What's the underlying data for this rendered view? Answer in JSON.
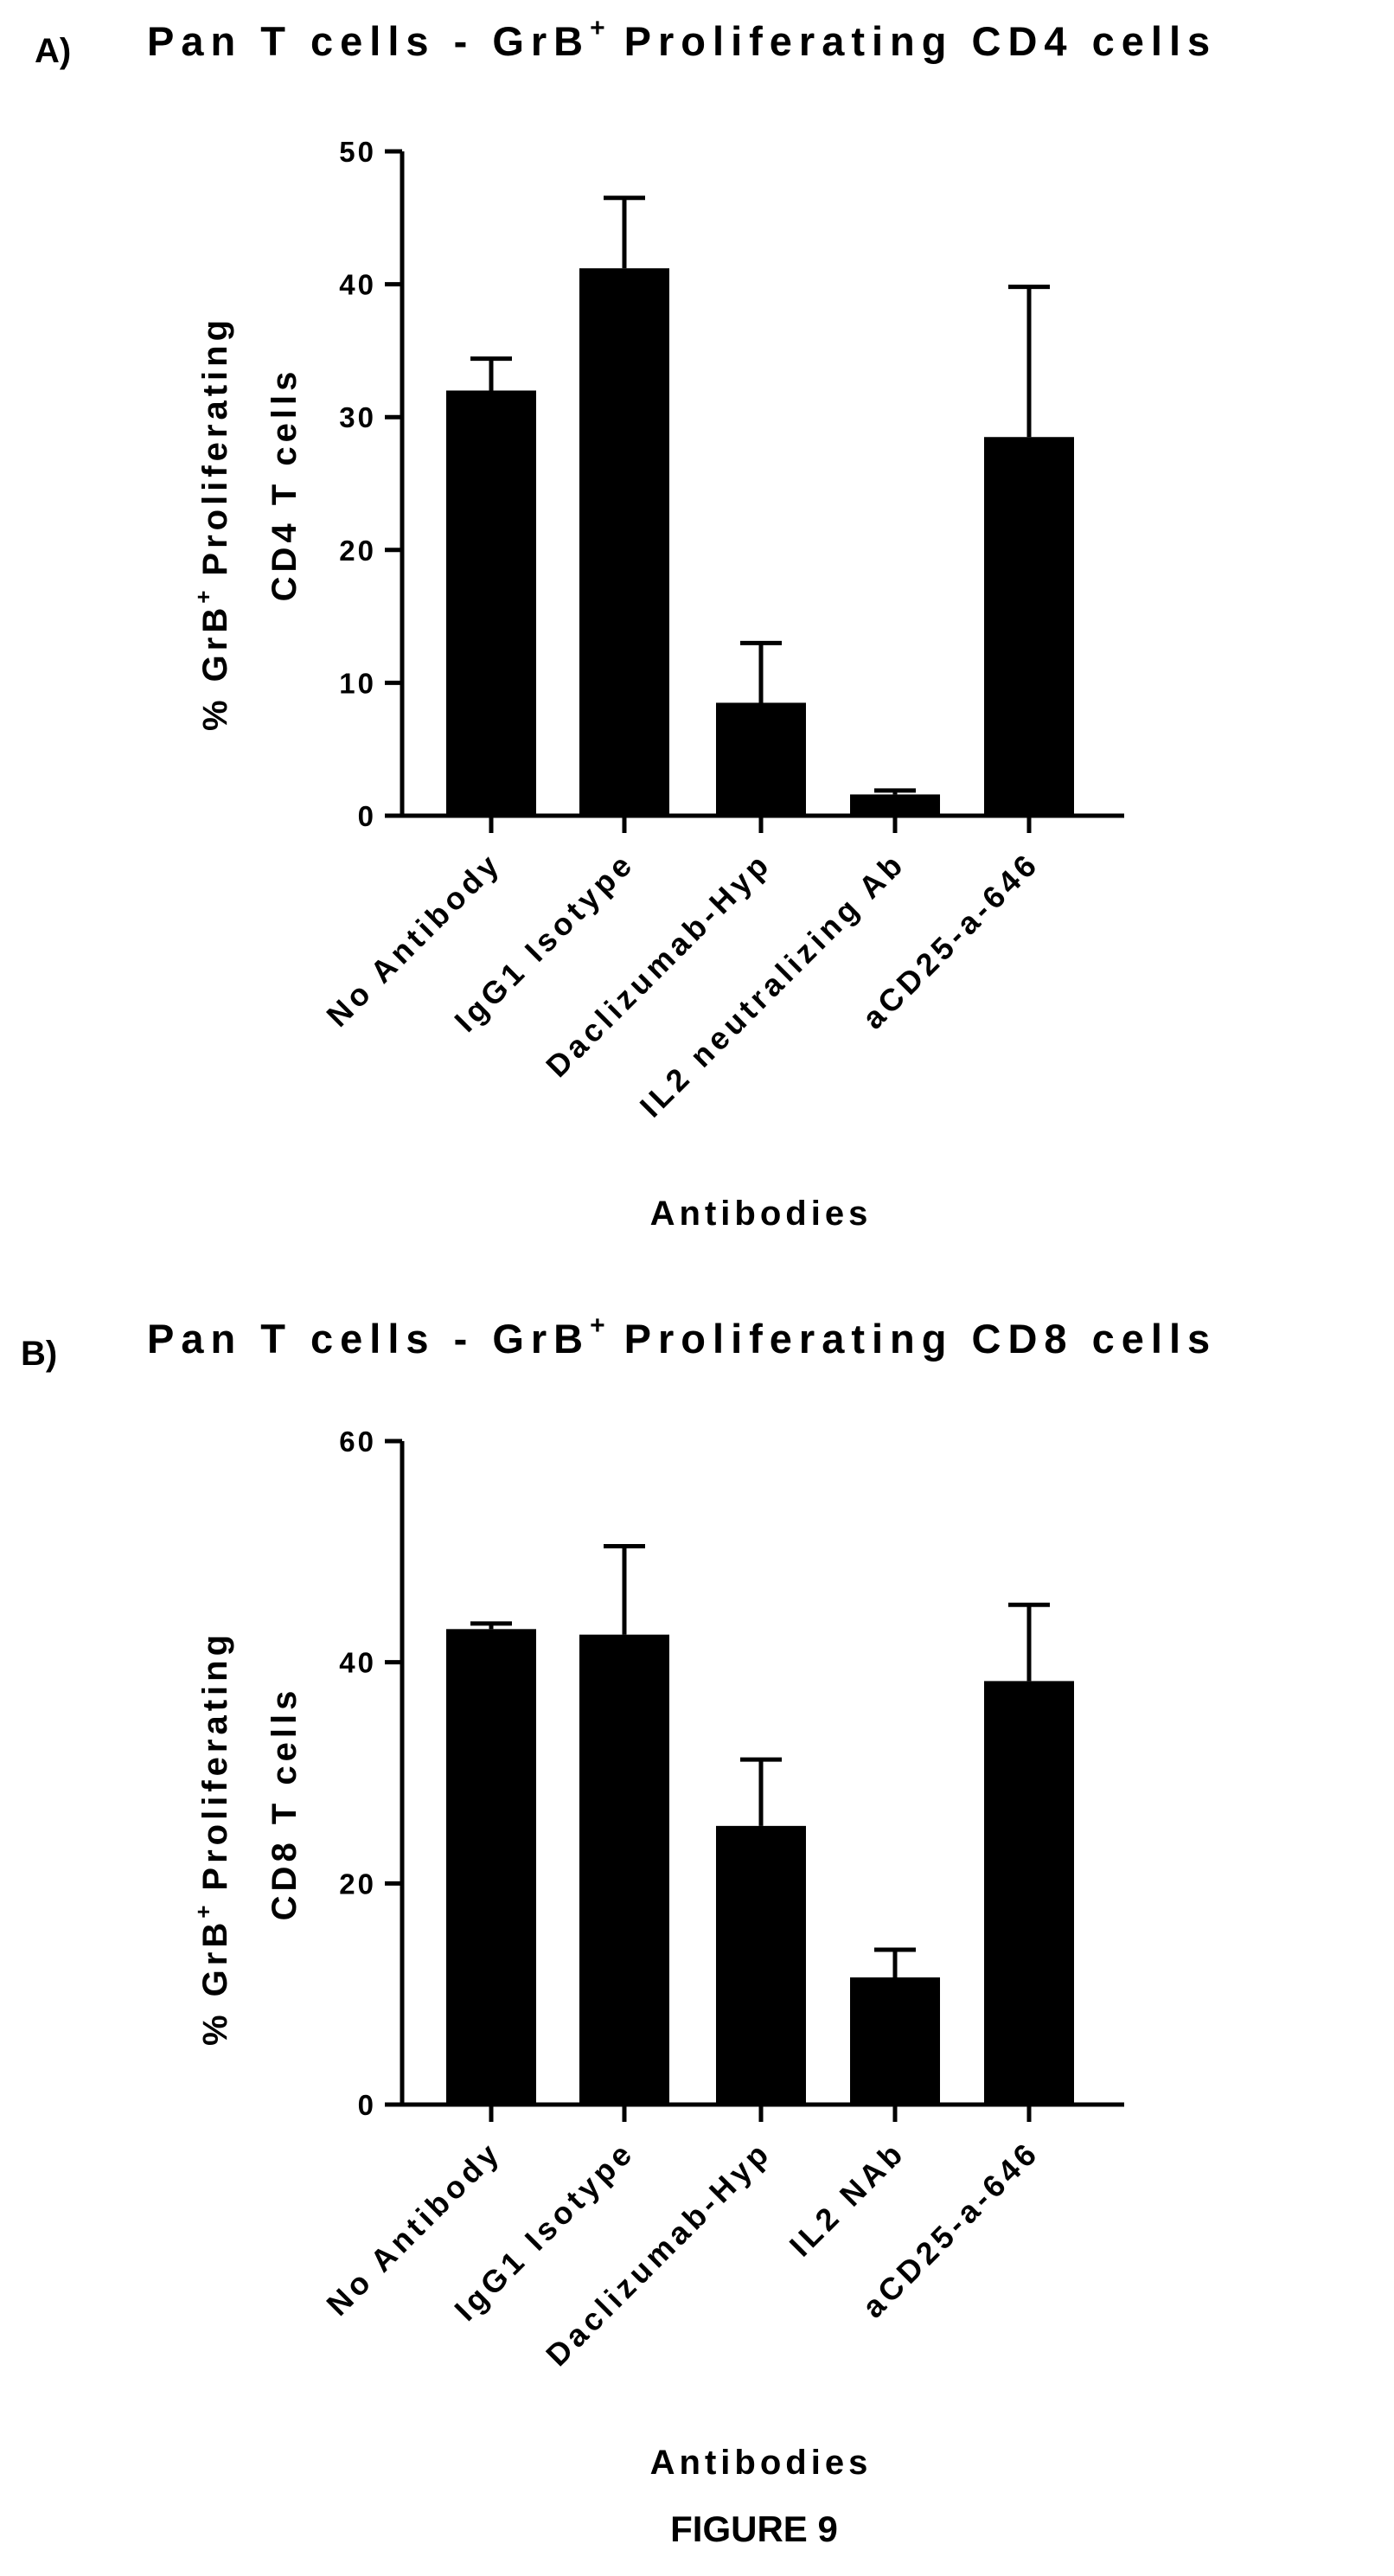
{
  "figure_caption": "FIGURE 9",
  "chart_data": [
    {
      "type": "bar",
      "panel_label": "A)",
      "title_prefix": "Pan T cells - GrB",
      "title_suffix": "Proliferating CD4 cells",
      "title_superscript": "+",
      "ylabel_line1_prefix": "% GrB",
      "ylabel_line1_suffix": "Proliferating",
      "ylabel_superscript": "+",
      "ylabel_line2": "CD4 T cells",
      "xlabel": "Antibodies",
      "categories": [
        "No Antibody",
        "IgG1 Isotype",
        "Daclizumab-Hyp",
        "IL2 neutralizing Ab",
        "aCD25-a-646"
      ],
      "values": [
        32,
        41.2,
        8.5,
        1.6,
        28.5
      ],
      "error_upper": [
        34.4,
        46.5,
        13.0,
        1.9,
        39.8
      ],
      "ylim": [
        0,
        50
      ],
      "yticks": [
        "0",
        "10",
        "20",
        "30",
        "40",
        "50"
      ],
      "bar_color": "#000000"
    },
    {
      "type": "bar",
      "panel_label": "B)",
      "title_prefix": "Pan T cells - GrB",
      "title_suffix": "Proliferating CD8 cells",
      "title_superscript": "+",
      "ylabel_line1_prefix": "% GrB",
      "ylabel_line1_suffix": "Proliferating",
      "ylabel_superscript": "+",
      "ylabel_line2": "CD8 T cells",
      "xlabel": "Antibodies",
      "categories": [
        "No Antibody",
        "IgG1 Isotype",
        "Daclizumab-Hyp",
        "IL2 NAb",
        "aCD25-a-646"
      ],
      "values": [
        43.0,
        42.5,
        25.2,
        11.5,
        38.3
      ],
      "error_upper": [
        43.5,
        50.5,
        31.2,
        14.0,
        45.2
      ],
      "ylim": [
        0,
        60
      ],
      "yticks": [
        "0",
        "20",
        "40",
        "60"
      ],
      "bar_color": "#000000"
    }
  ]
}
